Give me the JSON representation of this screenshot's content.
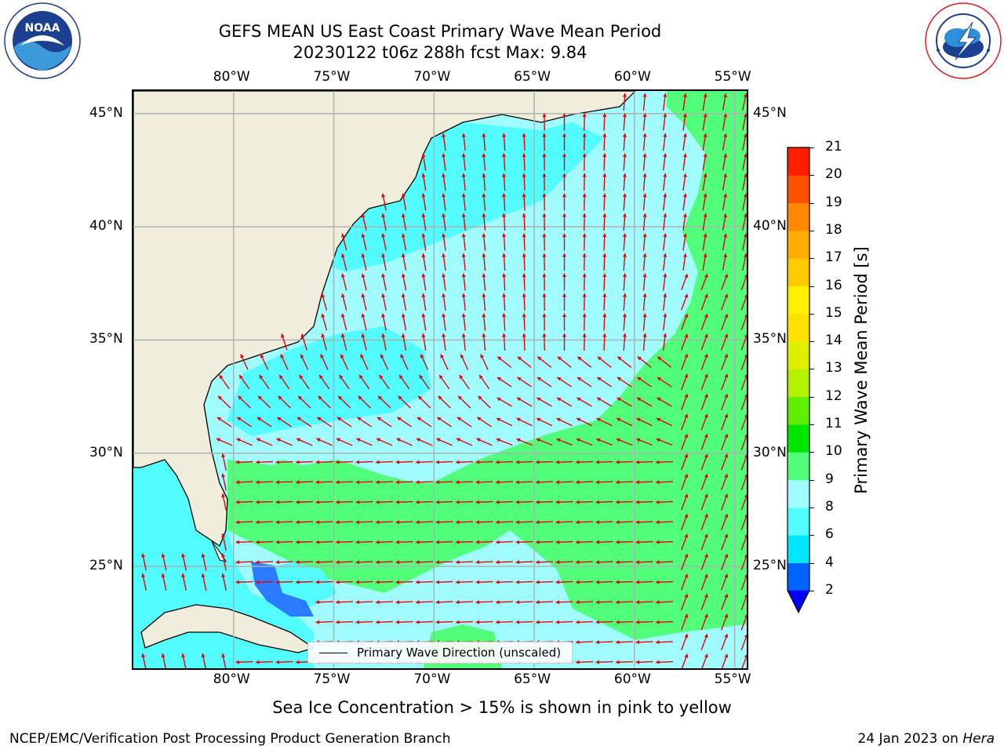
{
  "header": {
    "title_line1": "GEFS MEAN US East Coast Primary Wave Mean Period",
    "title_line2": "20230122 t06z 288h fcst   Max: 9.84"
  },
  "logos": {
    "left": {
      "text": "NOAA",
      "ring_text": "NATIONAL OCEANIC AND ATMOSPHERIC ADMINISTRATION · U.S. DEPARTMENT OF COMMERCE"
    },
    "right": {
      "ring_text": "NATIONAL WEATHER SERVICE"
    }
  },
  "map": {
    "lon_ticks": [
      "80°W",
      "75°W",
      "70°W",
      "65°W",
      "60°W",
      "55°W"
    ],
    "lat_ticks": [
      "45°N",
      "40°N",
      "35°N",
      "30°N",
      "25°N"
    ],
    "lon_values": [
      -80,
      -75,
      -70,
      -65,
      -60,
      -55
    ],
    "lat_values": [
      45,
      40,
      35,
      30,
      25
    ],
    "extent": {
      "lon": [
        -85,
        -54.4
      ],
      "lat": [
        20.5,
        46.0
      ]
    },
    "grid": true,
    "land_color": "#efeedd",
    "arrow_color": "#e8000b",
    "legend_label": "Primary Wave Direction (unscaled)"
  },
  "colorbar": {
    "title": "Primary Wave Mean Period [s]",
    "levels": [
      "2",
      "4",
      "6",
      "8",
      "9",
      "10",
      "11",
      "12",
      "13",
      "14",
      "15",
      "16",
      "17",
      "18",
      "19",
      "20",
      "21"
    ],
    "colors": [
      "#0062ff",
      "#00e6ff",
      "#52fcff",
      "#a0fcff",
      "#52ff7a",
      "#00e600",
      "#5ef000",
      "#b4f000",
      "#dcf000",
      "#ffe100",
      "#fff000",
      "#ffcb00",
      "#ffad00",
      "#ff8800",
      "#ff5200",
      "#ff1e00"
    ],
    "extend_color": "#0000ff"
  },
  "footnote": "Sea Ice Concentration > 15% is shown in pink to yellow",
  "footer": {
    "left": "NCEP/EMC/Verification Post Processing Product Generation Branch",
    "right_prefix": "24 Jan 2023 on ",
    "right_machine": "Hera"
  }
}
